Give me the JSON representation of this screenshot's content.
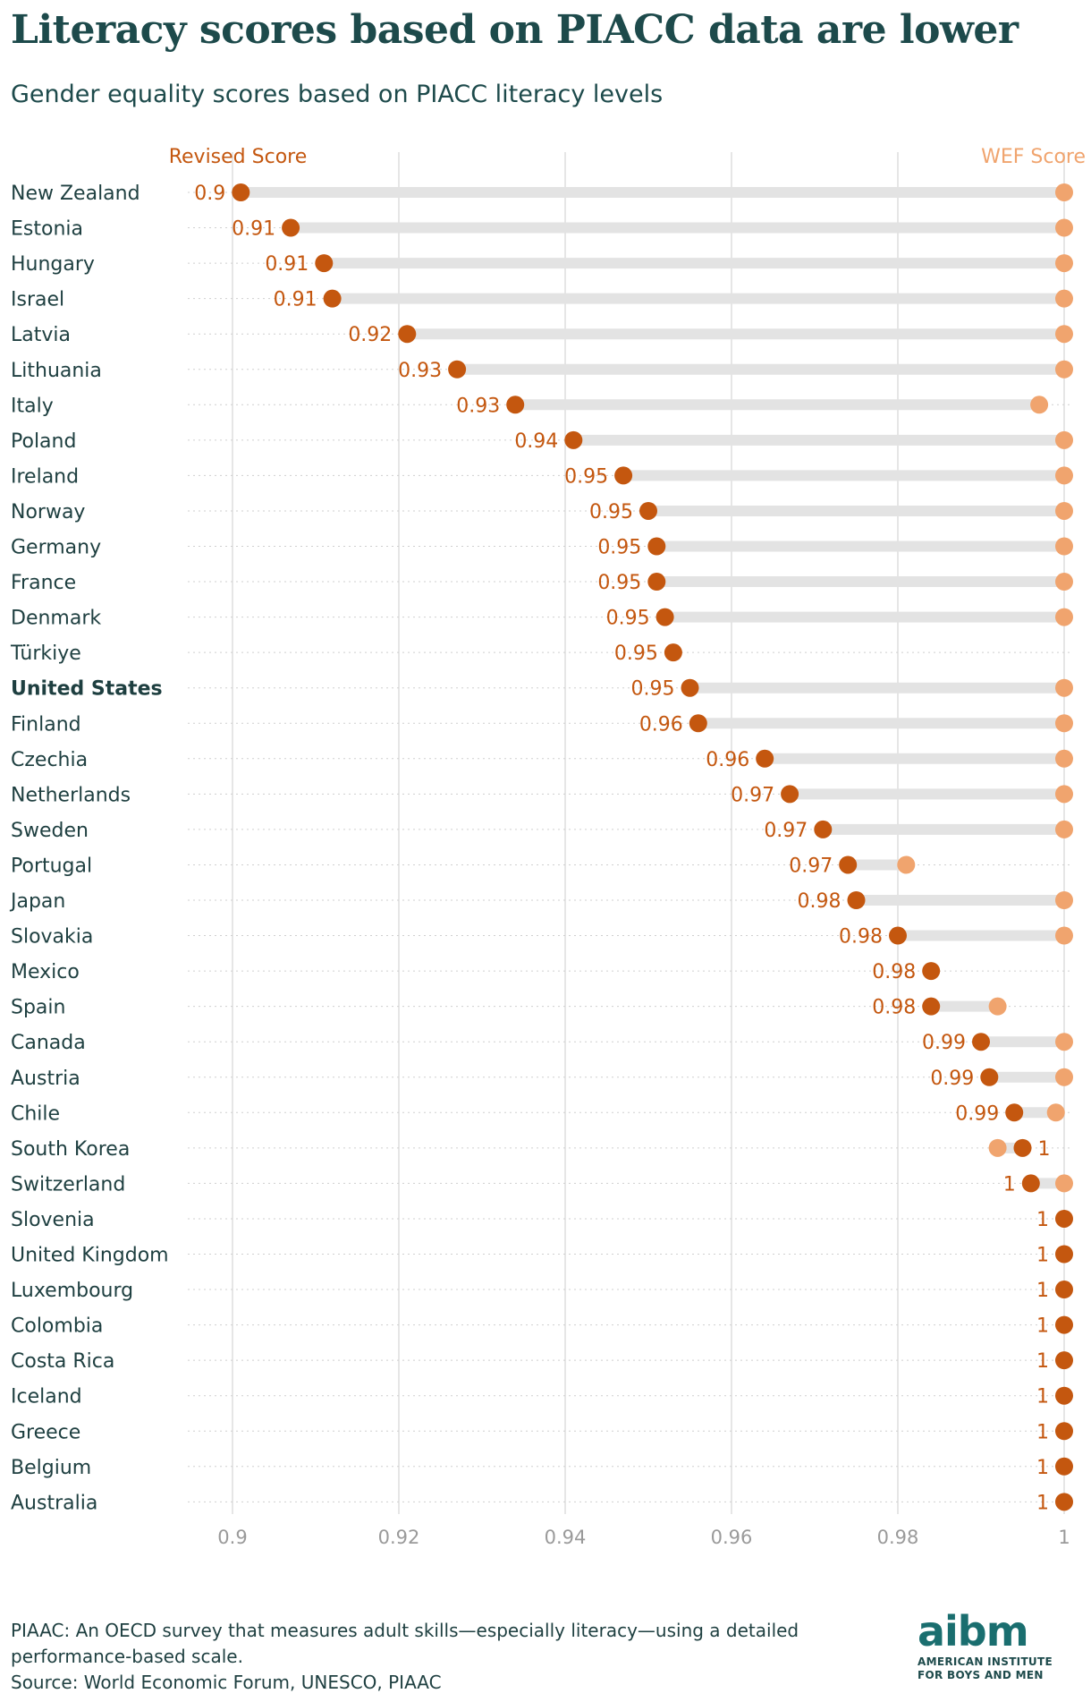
{
  "title": "Literacy scores based on PIACC data are lower",
  "subtitle": "Gender equality scores based on PIACC literacy levels",
  "footnote": "PIAAC: An OECD survey that measures adult skills—especially literacy—using a detailed performance-based scale.",
  "source": "Source: World Economic Forum, UNESCO, PIAAC",
  "logo": {
    "word": "aibm",
    "line1": "AMERICAN INSTITUTE",
    "line2": "FOR BOYS AND MEN"
  },
  "colors": {
    "revised": "#c4570f",
    "wef": "#f0a46e",
    "connector": "#e3e3e3",
    "grid": "#dddddd",
    "label_text": "#1e3f40",
    "axis_text": "#9a9a9a"
  },
  "chart_data": {
    "type": "dumbbell",
    "title": "Literacy scores based on PIACC data are lower",
    "subtitle": "Gender equality scores based on PIACC literacy levels",
    "series": [
      {
        "name": "Revised Score",
        "key": "revised"
      },
      {
        "name": "WEF Score",
        "key": "wef"
      }
    ],
    "xlim": [
      0.9,
      1
    ],
    "x_ticks": [
      0.9,
      0.92,
      0.94,
      0.96,
      0.98,
      1
    ],
    "x_tick_labels": [
      "0.9",
      "0.92",
      "0.94",
      "0.96",
      "0.98",
      "1"
    ],
    "grid": true,
    "highlight": "United States",
    "rows": [
      {
        "country": "New Zealand",
        "revised": 0.901,
        "wef": 1.0,
        "label": "0.9"
      },
      {
        "country": "Estonia",
        "revised": 0.907,
        "wef": 1.0,
        "label": "0.91"
      },
      {
        "country": "Hungary",
        "revised": 0.911,
        "wef": 1.0,
        "label": "0.91"
      },
      {
        "country": "Israel",
        "revised": 0.912,
        "wef": 1.0,
        "label": "0.91"
      },
      {
        "country": "Latvia",
        "revised": 0.921,
        "wef": 1.0,
        "label": "0.92"
      },
      {
        "country": "Lithuania",
        "revised": 0.927,
        "wef": 1.0,
        "label": "0.93"
      },
      {
        "country": "Italy",
        "revised": 0.934,
        "wef": 0.997,
        "label": "0.93"
      },
      {
        "country": "Poland",
        "revised": 0.941,
        "wef": 1.0,
        "label": "0.94"
      },
      {
        "country": "Ireland",
        "revised": 0.947,
        "wef": 1.0,
        "label": "0.95"
      },
      {
        "country": "Norway",
        "revised": 0.95,
        "wef": 1.0,
        "label": "0.95"
      },
      {
        "country": "Germany",
        "revised": 0.951,
        "wef": 1.0,
        "label": "0.95"
      },
      {
        "country": "France",
        "revised": 0.951,
        "wef": 1.0,
        "label": "0.95"
      },
      {
        "country": "Denmark",
        "revised": 0.952,
        "wef": 1.0,
        "label": "0.95"
      },
      {
        "country": "Türkiye",
        "revised": 0.953,
        "wef": 0.953,
        "label": "0.95"
      },
      {
        "country": "United States",
        "revised": 0.955,
        "wef": 1.0,
        "label": "0.95"
      },
      {
        "country": "Finland",
        "revised": 0.956,
        "wef": 1.0,
        "label": "0.96"
      },
      {
        "country": "Czechia",
        "revised": 0.964,
        "wef": 1.0,
        "label": "0.96"
      },
      {
        "country": "Netherlands",
        "revised": 0.967,
        "wef": 1.0,
        "label": "0.97"
      },
      {
        "country": "Sweden",
        "revised": 0.971,
        "wef": 1.0,
        "label": "0.97"
      },
      {
        "country": "Portugal",
        "revised": 0.974,
        "wef": 0.981,
        "label": "0.97"
      },
      {
        "country": "Japan",
        "revised": 0.975,
        "wef": 1.0,
        "label": "0.98"
      },
      {
        "country": "Slovakia",
        "revised": 0.98,
        "wef": 1.0,
        "label": "0.98"
      },
      {
        "country": "Mexico",
        "revised": 0.984,
        "wef": 0.984,
        "label": "0.98"
      },
      {
        "country": "Spain",
        "revised": 0.984,
        "wef": 0.992,
        "label": "0.98"
      },
      {
        "country": "Canada",
        "revised": 0.99,
        "wef": 1.0,
        "label": "0.99"
      },
      {
        "country": "Austria",
        "revised": 0.991,
        "wef": 1.0,
        "label": "0.99"
      },
      {
        "country": "Chile",
        "revised": 0.994,
        "wef": 0.999,
        "label": "0.99"
      },
      {
        "country": "South Korea",
        "revised": 0.995,
        "wef": 0.992,
        "label": "1"
      },
      {
        "country": "Switzerland",
        "revised": 0.996,
        "wef": 1.0,
        "label": "1"
      },
      {
        "country": "Slovenia",
        "revised": 1.0,
        "wef": 1.0,
        "label": "1"
      },
      {
        "country": "United Kingdom",
        "revised": 1.0,
        "wef": 1.0,
        "label": "1"
      },
      {
        "country": "Luxembourg",
        "revised": 1.0,
        "wef": 1.0,
        "label": "1"
      },
      {
        "country": "Colombia",
        "revised": 1.0,
        "wef": 1.0,
        "label": "1"
      },
      {
        "country": "Costa Rica",
        "revised": 1.0,
        "wef": 1.0,
        "label": "1"
      },
      {
        "country": "Iceland",
        "revised": 1.0,
        "wef": 1.0,
        "label": "1"
      },
      {
        "country": "Greece",
        "revised": 1.0,
        "wef": 1.0,
        "label": "1"
      },
      {
        "country": "Belgium",
        "revised": 1.0,
        "wef": 1.0,
        "label": "1"
      },
      {
        "country": "Australia",
        "revised": 1.0,
        "wef": 1.0,
        "label": "1"
      }
    ]
  }
}
